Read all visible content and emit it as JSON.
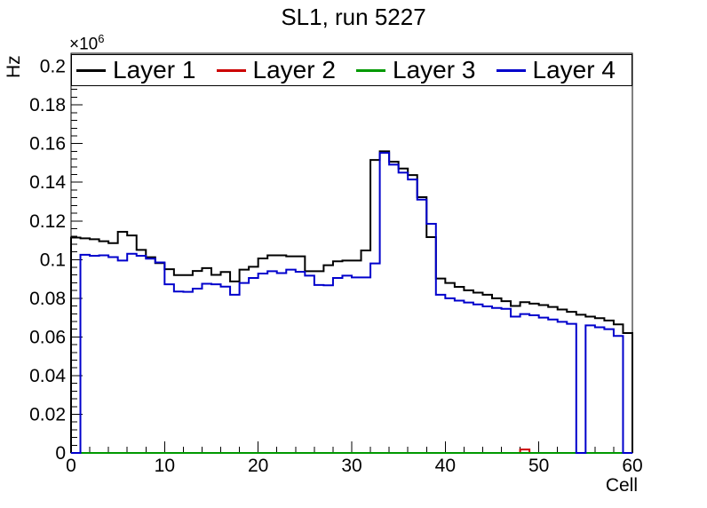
{
  "title": "SL1, run 5227",
  "axes": {
    "x_title": "Cell",
    "y_title": "Hz",
    "y_exponent_base": "×10",
    "y_exponent_power": "6"
  },
  "chart_data": {
    "type": "line",
    "subtype": "step-histogram",
    "title": "SL1, run 5227",
    "xlabel": "Cell",
    "ylabel": "Hz",
    "y_unit_scale": "×10^6",
    "bins": 60,
    "grid": false,
    "legend_position": "top-inside-full-width",
    "x_axis": {
      "range": [
        0,
        60
      ],
      "minor_tick_step": 2,
      "major_ticks": [
        {
          "value": 0,
          "label": "0"
        },
        {
          "value": 10,
          "label": "10"
        },
        {
          "value": 20,
          "label": "20"
        },
        {
          "value": 30,
          "label": "30"
        },
        {
          "value": 40,
          "label": "40"
        },
        {
          "value": 50,
          "label": "50"
        },
        {
          "value": 60,
          "label": "60"
        }
      ]
    },
    "y_axis": {
      "range_labeled": [
        0,
        0.2
      ],
      "frame_max": 0.2067,
      "minor_tick_step": 0.004,
      "major_ticks": [
        {
          "value": 0.0,
          "label": "0"
        },
        {
          "value": 0.02,
          "label": "0.02"
        },
        {
          "value": 0.04,
          "label": "0.04"
        },
        {
          "value": 0.06,
          "label": "0.06"
        },
        {
          "value": 0.08,
          "label": "0.08"
        },
        {
          "value": 0.1,
          "label": "0.1"
        },
        {
          "value": 0.12,
          "label": "0.12"
        },
        {
          "value": 0.14,
          "label": "0.14"
        },
        {
          "value": 0.16,
          "label": "0.16"
        },
        {
          "value": 0.18,
          "label": "0.18"
        },
        {
          "value": 0.2,
          "label": "0.2"
        }
      ]
    },
    "series": [
      {
        "id": "layer-1",
        "name": "Layer 1",
        "color": "#000000",
        "values": [
          0.1114,
          0.111,
          0.1105,
          0.1095,
          0.1085,
          0.1144,
          0.1125,
          0.105,
          0.1012,
          0.0982,
          0.095,
          0.092,
          0.092,
          0.0941,
          0.0956,
          0.0921,
          0.0936,
          0.0887,
          0.0948,
          0.0963,
          0.1006,
          0.1022,
          0.1022,
          0.1017,
          0.1017,
          0.094,
          0.094,
          0.0971,
          0.0991,
          0.0995,
          0.0995,
          0.1047,
          0.1515,
          0.156,
          0.1506,
          0.1471,
          0.1437,
          0.1323,
          0.1116,
          0.0902,
          0.0879,
          0.0859,
          0.0841,
          0.0829,
          0.0818,
          0.08,
          0.0785,
          0.076,
          0.078,
          0.0772,
          0.0765,
          0.0755,
          0.0742,
          0.073,
          0.0715,
          0.0705,
          0.0697,
          0.0685,
          0.0665,
          0.062
        ]
      },
      {
        "id": "layer-2",
        "name": "Layer 2",
        "color": "#cc0000",
        "values": [
          0,
          0,
          0,
          0,
          0,
          0,
          0,
          0,
          0,
          0,
          0,
          0,
          0,
          0,
          0,
          0,
          0,
          0,
          0,
          0,
          0,
          0,
          0,
          0,
          0,
          0,
          0,
          0,
          0,
          0,
          0,
          0,
          0,
          0,
          0,
          0,
          0,
          0,
          0,
          0,
          0,
          0,
          0,
          0,
          0,
          0,
          0,
          0,
          0.0018,
          0,
          0,
          0,
          0,
          0,
          0,
          0,
          0,
          0,
          0,
          0
        ]
      },
      {
        "id": "layer-3",
        "name": "Layer 3",
        "color": "#009900",
        "values": [
          0,
          0,
          0,
          0,
          0,
          0,
          0,
          0,
          0,
          0,
          0,
          0,
          0,
          0,
          0,
          0,
          0,
          0,
          0,
          0,
          0,
          0,
          0,
          0,
          0,
          0,
          0,
          0,
          0,
          0,
          0,
          0,
          0,
          0,
          0,
          0,
          0,
          0,
          0,
          0,
          0,
          0,
          0,
          0,
          0,
          0,
          0,
          0,
          0,
          0,
          0,
          0,
          0,
          0,
          0,
          0,
          0,
          0,
          0,
          0
        ]
      },
      {
        "id": "layer-4",
        "name": "Layer 4",
        "color": "#0000cc",
        "values": [
          0,
          0.1025,
          0.102,
          0.1022,
          0.1013,
          0.0995,
          0.103,
          0.102,
          0.1005,
          0.0985,
          0.0872,
          0.0835,
          0.0833,
          0.085,
          0.0875,
          0.0872,
          0.086,
          0.0818,
          0.0879,
          0.0905,
          0.0928,
          0.094,
          0.093,
          0.0948,
          0.0937,
          0.0917,
          0.0869,
          0.0867,
          0.0905,
          0.0917,
          0.0908,
          0.0908,
          0.098,
          0.1552,
          0.1491,
          0.145,
          0.1414,
          0.131,
          0.1185,
          0.0818,
          0.08,
          0.0788,
          0.0778,
          0.0768,
          0.0758,
          0.075,
          0.0745,
          0.0705,
          0.0718,
          0.0712,
          0.07,
          0.069,
          0.0678,
          0.0668,
          0,
          0.066,
          0.065,
          0.064,
          0.0605,
          0
        ]
      }
    ]
  }
}
